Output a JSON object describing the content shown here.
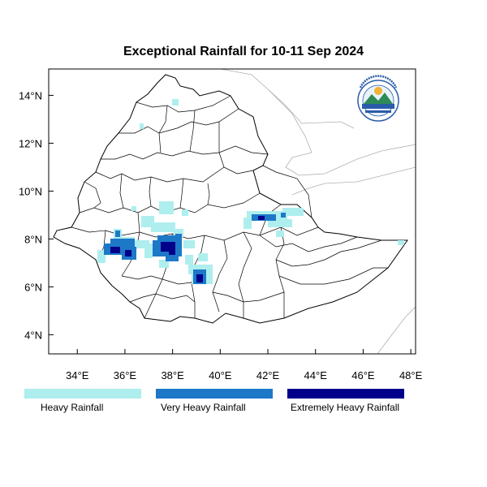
{
  "title": "Exceptional Rainfall for 10-11 Sep 2024",
  "map": {
    "lon_range": [
      32.8,
      48.2
    ],
    "lat_range": [
      3.2,
      15.1
    ],
    "x_ticks": [
      {
        "value": 34,
        "label": "34°E"
      },
      {
        "value": 36,
        "label": "36°E"
      },
      {
        "value": 38,
        "label": "38°E"
      },
      {
        "value": 40,
        "label": "40°E"
      },
      {
        "value": 42,
        "label": "42°E"
      },
      {
        "value": 44,
        "label": "44°E"
      },
      {
        "value": 46,
        "label": "46°E"
      },
      {
        "value": 48,
        "label": "48°E"
      }
    ],
    "y_ticks": [
      {
        "value": 4,
        "label": "4°N"
      },
      {
        "value": 6,
        "label": "6°N"
      },
      {
        "value": 8,
        "label": "8°N"
      },
      {
        "value": 10,
        "label": "10°N"
      },
      {
        "value": 12,
        "label": "12°N"
      },
      {
        "value": 14,
        "label": "14°N"
      }
    ],
    "logo_lettering": "Ethiopian Meteorology Institute"
  },
  "legend": [
    {
      "label": "Heavy Rainfall",
      "color": "#aeeeee"
    },
    {
      "label": "Very Heavy Rainfall",
      "color": "#1e78c8"
    },
    {
      "label": "Extremely Heavy Rainfall",
      "color": "#00008b"
    }
  ]
}
